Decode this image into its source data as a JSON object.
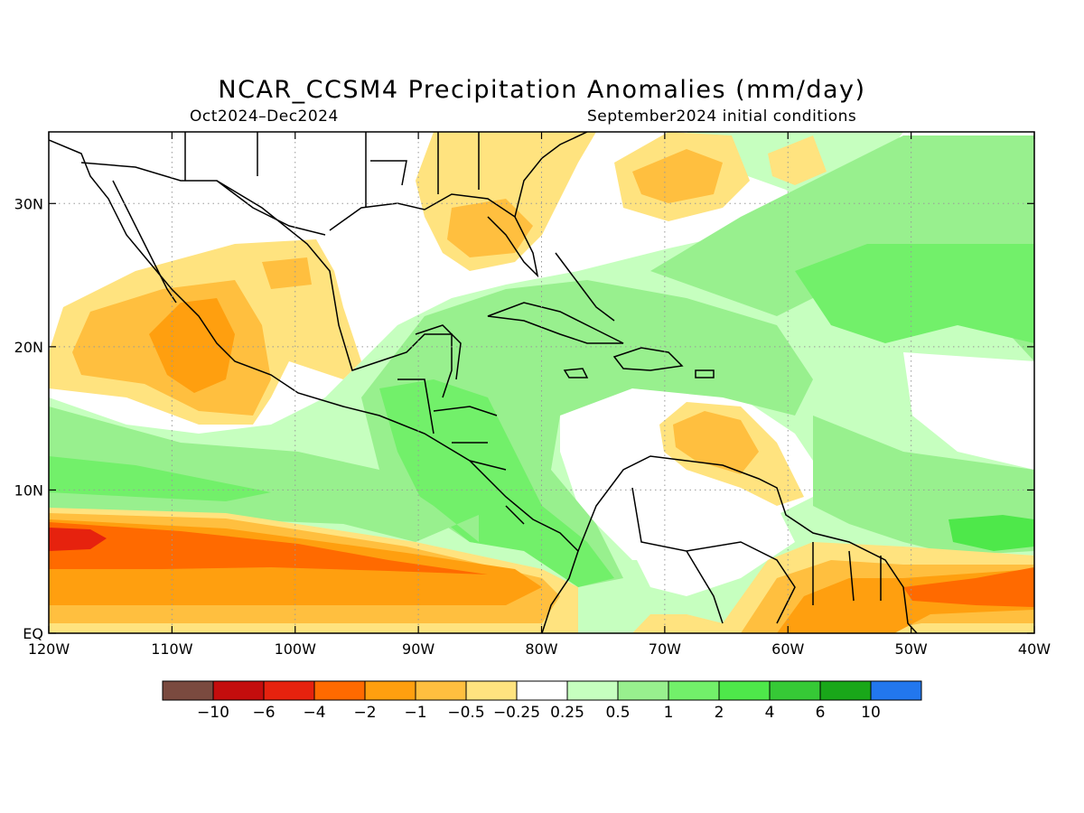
{
  "header": {
    "title": "NCAR_CCSM4 Precipitation Anomalies (mm/day)",
    "period": "Oct2024–Dec2024",
    "init": "September2024 initial conditions"
  },
  "map": {
    "lon_range": [
      -120,
      -40
    ],
    "lat_range": [
      0,
      35
    ],
    "lon_ticks": [
      {
        "v": -120,
        "label": "120W"
      },
      {
        "v": -110,
        "label": "110W"
      },
      {
        "v": -100,
        "label": "100W"
      },
      {
        "v": -90,
        "label": "90W"
      },
      {
        "v": -80,
        "label": "80W"
      },
      {
        "v": -70,
        "label": "70W"
      },
      {
        "v": -60,
        "label": "60W"
      },
      {
        "v": -50,
        "label": "50W"
      },
      {
        "v": -40,
        "label": "40W"
      }
    ],
    "lat_ticks": [
      {
        "v": 0,
        "label": "EQ"
      },
      {
        "v": 10,
        "label": "10N"
      },
      {
        "v": 20,
        "label": "20N"
      },
      {
        "v": 30,
        "label": "30N"
      }
    ],
    "gridlines": "dotted"
  },
  "colorbar": {
    "colors": [
      "#7a4a3f",
      "#c40d0d",
      "#e6220e",
      "#ff6a00",
      "#ff9f0f",
      "#ffbf3f",
      "#ffe37f",
      "#ffffff",
      "#c6ffbf",
      "#98f08e",
      "#72f06a",
      "#4ee84a",
      "#36c936",
      "#19a719",
      "#2277ee"
    ],
    "labels": [
      "−10",
      "−6",
      "−4",
      "−2",
      "−1",
      "−0.5",
      "−0.25",
      "0.25",
      "0.5",
      "1",
      "2",
      "4",
      "6",
      "10"
    ]
  }
}
